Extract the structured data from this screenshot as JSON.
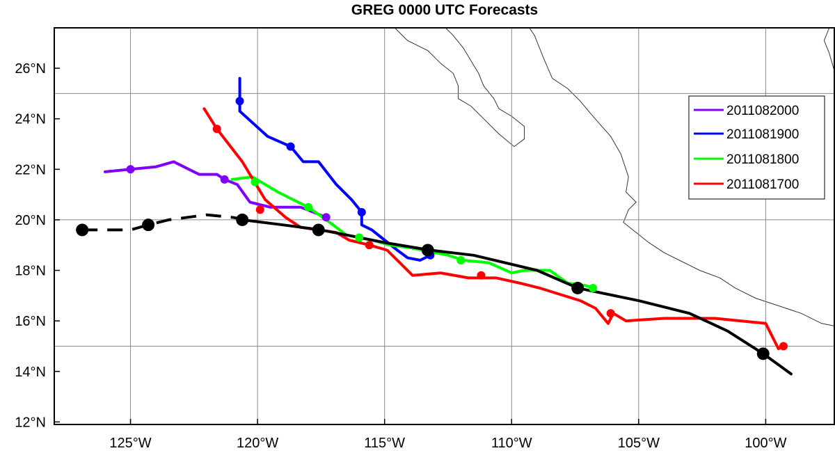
{
  "title": "GREG 0000 UTC Forecasts",
  "map": {
    "lon_range": [
      -128.0,
      -97.3
    ],
    "lat_range": [
      11.9,
      27.6
    ],
    "grid_lons": [
      -125,
      -120,
      -115,
      -110,
      -105,
      -100
    ],
    "grid_lats": [
      15,
      20,
      25
    ],
    "lon_ticks": [
      {
        "value": -125,
        "label": "125°W"
      },
      {
        "value": -120,
        "label": "120°W"
      },
      {
        "value": -115,
        "label": "115°W"
      },
      {
        "value": -110,
        "label": "110°W"
      },
      {
        "value": -105,
        "label": "105°W"
      },
      {
        "value": -100,
        "label": "100°W"
      }
    ],
    "lat_ticks": [
      {
        "value": 12,
        "label": "12°N"
      },
      {
        "value": 14,
        "label": "14°N"
      },
      {
        "value": 16,
        "label": "16°N"
      },
      {
        "value": 18,
        "label": "18°N"
      },
      {
        "value": 20,
        "label": "20°N"
      },
      {
        "value": 22,
        "label": "22°N"
      },
      {
        "value": 24,
        "label": "24°N"
      },
      {
        "value": 26,
        "label": "26°N"
      }
    ],
    "coastlines": [
      [
        [
          -109.3,
          27.6
        ],
        [
          -109.1,
          27.3
        ],
        [
          -108.9,
          26.8
        ],
        [
          -108.7,
          26.3
        ],
        [
          -108.4,
          25.6
        ],
        [
          -107.8,
          25.2
        ],
        [
          -107.3,
          24.7
        ],
        [
          -106.8,
          24.1
        ],
        [
          -106.1,
          23.3
        ],
        [
          -105.7,
          22.6
        ],
        [
          -105.4,
          21.7
        ],
        [
          -105.5,
          21.1
        ],
        [
          -105.1,
          20.7
        ],
        [
          -105.4,
          20.4
        ],
        [
          -105.6,
          19.9
        ],
        [
          -105.1,
          19.5
        ],
        [
          -104.6,
          19.1
        ],
        [
          -104.0,
          18.7
        ],
        [
          -103.4,
          18.4
        ],
        [
          -102.6,
          18.0
        ],
        [
          -101.8,
          17.7
        ],
        [
          -101.2,
          17.3
        ],
        [
          -100.4,
          16.9
        ],
        [
          -99.5,
          16.6
        ],
        [
          -98.6,
          16.3
        ],
        [
          -97.8,
          15.9
        ],
        [
          -97.3,
          15.8
        ]
      ],
      [
        [
          -114.6,
          27.6
        ],
        [
          -114.1,
          27.1
        ],
        [
          -113.3,
          26.7
        ],
        [
          -112.8,
          26.2
        ],
        [
          -112.3,
          25.8
        ],
        [
          -112.1,
          25.3
        ],
        [
          -112.1,
          24.8
        ],
        [
          -111.6,
          24.5
        ],
        [
          -111.1,
          24.0
        ],
        [
          -110.5,
          23.4
        ],
        [
          -109.9,
          22.9
        ],
        [
          -109.5,
          23.2
        ],
        [
          -109.5,
          23.7
        ],
        [
          -110.0,
          24.1
        ],
        [
          -110.5,
          24.4
        ],
        [
          -110.7,
          24.8
        ],
        [
          -111.1,
          25.3
        ],
        [
          -111.3,
          25.8
        ],
        [
          -111.6,
          26.3
        ],
        [
          -111.9,
          26.8
        ],
        [
          -112.3,
          27.3
        ],
        [
          -112.6,
          27.6
        ]
      ],
      [
        [
          -97.3,
          25.9
        ],
        [
          -97.5,
          26.6
        ],
        [
          -97.7,
          27.1
        ],
        [
          -97.5,
          27.6
        ]
      ]
    ]
  },
  "legend": [
    {
      "label": "2011082000",
      "color": "#8000ff"
    },
    {
      "label": "2011081900",
      "color": "#0000ff"
    },
    {
      "label": "2011081800",
      "color": "#00ff00"
    },
    {
      "label": "2011081700",
      "color": "#ff0000"
    }
  ],
  "chart_data": {
    "type": "line",
    "title": "GREG 0000 UTC Forecasts",
    "xlabel": "",
    "ylabel": "",
    "xlim": [
      -128.0,
      -97.3
    ],
    "ylim": [
      11.9,
      27.6
    ],
    "grid": true,
    "legend_position": "right",
    "series": [
      {
        "name": "2011082000",
        "color": "#8000ff",
        "points": [
          [
            -126.0,
            21.9
          ],
          [
            -125.0,
            22.0
          ],
          [
            -124.0,
            22.1
          ],
          [
            -123.3,
            22.3
          ],
          [
            -122.3,
            21.8
          ],
          [
            -121.6,
            21.8
          ],
          [
            -121.3,
            21.6
          ],
          [
            -120.8,
            21.4
          ],
          [
            -120.3,
            20.7
          ],
          [
            -119.5,
            20.5
          ],
          [
            -118.3,
            20.5
          ],
          [
            -117.3,
            20.1
          ]
        ],
        "markers": [
          [
            -125.0,
            22.0
          ],
          [
            -121.3,
            21.6
          ],
          [
            -117.3,
            20.1
          ]
        ]
      },
      {
        "name": "2011081900",
        "color": "#0000ff",
        "points": [
          [
            -120.7,
            25.6
          ],
          [
            -120.7,
            24.7
          ],
          [
            -120.7,
            24.3
          ],
          [
            -119.6,
            23.3
          ],
          [
            -118.7,
            22.9
          ],
          [
            -118.2,
            22.3
          ],
          [
            -117.6,
            22.3
          ],
          [
            -116.9,
            21.4
          ],
          [
            -116.3,
            20.8
          ],
          [
            -115.9,
            20.3
          ],
          [
            -115.9,
            19.8
          ],
          [
            -115.5,
            19.6
          ],
          [
            -115.0,
            19.2
          ],
          [
            -114.5,
            18.8
          ],
          [
            -114.1,
            18.5
          ],
          [
            -113.6,
            18.4
          ],
          [
            -113.2,
            18.6
          ]
        ],
        "markers": [
          [
            -120.7,
            24.7
          ],
          [
            -118.7,
            22.9
          ],
          [
            -115.9,
            20.3
          ],
          [
            -113.2,
            18.6
          ]
        ]
      },
      {
        "name": "2011081800",
        "color": "#00ff00",
        "points": [
          [
            -121.0,
            21.6
          ],
          [
            -120.2,
            21.7
          ],
          [
            -119.2,
            21.1
          ],
          [
            -118.0,
            20.5
          ],
          [
            -117.3,
            20.0
          ],
          [
            -116.5,
            19.4
          ],
          [
            -115.5,
            19.2
          ],
          [
            -114.8,
            19.0
          ],
          [
            -114.0,
            18.9
          ],
          [
            -112.5,
            18.6
          ],
          [
            -111.9,
            18.4
          ],
          [
            -110.9,
            18.3
          ],
          [
            -110.0,
            17.9
          ],
          [
            -109.5,
            18.0
          ],
          [
            -108.5,
            18.0
          ],
          [
            -107.8,
            17.5
          ],
          [
            -107.1,
            17.4
          ],
          [
            -106.8,
            17.3
          ]
        ],
        "markers": [
          [
            -120.1,
            21.5
          ],
          [
            -118.0,
            20.5
          ],
          [
            -116.0,
            19.3
          ],
          [
            -112.0,
            18.4
          ],
          [
            -106.8,
            17.3
          ]
        ]
      },
      {
        "name": "2011081700",
        "color": "#ff0000",
        "points": [
          [
            -122.1,
            24.4
          ],
          [
            -121.6,
            23.6
          ],
          [
            -120.6,
            22.3
          ],
          [
            -119.7,
            20.8
          ],
          [
            -118.9,
            20.1
          ],
          [
            -118.3,
            19.7
          ],
          [
            -117.6,
            19.6
          ],
          [
            -116.9,
            19.5
          ],
          [
            -116.4,
            19.2
          ],
          [
            -115.6,
            19.0
          ],
          [
            -114.9,
            18.8
          ],
          [
            -114.4,
            18.3
          ],
          [
            -113.9,
            17.8
          ],
          [
            -112.8,
            17.9
          ],
          [
            -111.7,
            17.7
          ],
          [
            -110.6,
            17.7
          ],
          [
            -109.7,
            17.5
          ],
          [
            -108.9,
            17.3
          ],
          [
            -107.3,
            16.8
          ],
          [
            -106.7,
            16.5
          ],
          [
            -106.2,
            15.9
          ],
          [
            -106.0,
            16.3
          ],
          [
            -105.5,
            16.0
          ],
          [
            -104.0,
            16.1
          ],
          [
            -102.0,
            16.1
          ],
          [
            -100.0,
            15.9
          ],
          [
            -99.5,
            14.9
          ],
          [
            -99.3,
            15.0
          ]
        ],
        "markers": [
          [
            -121.6,
            23.6
          ],
          [
            -119.9,
            20.4
          ],
          [
            -115.6,
            19.0
          ],
          [
            -111.2,
            17.8
          ],
          [
            -106.1,
            16.3
          ],
          [
            -99.3,
            15.0
          ]
        ]
      },
      {
        "name": "",
        "color": "#000000",
        "dashed": true,
        "points": [
          [
            -126.9,
            19.6
          ],
          [
            -125.0,
            19.6
          ],
          [
            -124.3,
            19.8
          ],
          [
            -123.5,
            20.0
          ],
          [
            -122.0,
            20.2
          ],
          [
            -121.0,
            20.1
          ],
          [
            -120.4,
            20.0
          ]
        ],
        "markers": [
          [
            -126.9,
            19.6
          ],
          [
            -124.3,
            19.8
          ],
          [
            -120.6,
            20.0
          ]
        ]
      },
      {
        "name": "",
        "color": "#000000",
        "dashed": false,
        "points": [
          [
            -120.6,
            20.0
          ],
          [
            -119.0,
            19.8
          ],
          [
            -117.5,
            19.6
          ],
          [
            -115.0,
            19.1
          ],
          [
            -113.2,
            18.8
          ],
          [
            -111.5,
            18.6
          ],
          [
            -109.0,
            18.0
          ],
          [
            -107.4,
            17.3
          ],
          [
            -105.0,
            16.8
          ],
          [
            -103.0,
            16.3
          ],
          [
            -101.5,
            15.6
          ],
          [
            -100.1,
            14.7
          ],
          [
            -99.0,
            13.9
          ]
        ],
        "markers": [
          [
            -117.6,
            19.6
          ],
          [
            -113.3,
            18.8
          ],
          [
            -107.4,
            17.3
          ],
          [
            -100.1,
            14.7
          ]
        ]
      }
    ]
  }
}
